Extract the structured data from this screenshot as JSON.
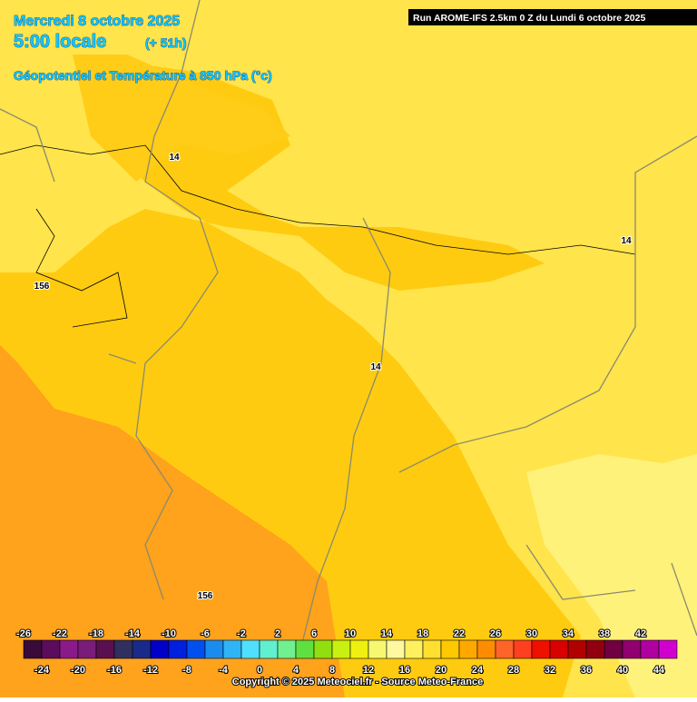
{
  "header": {
    "date": "Mercredi 8 octobre 2025",
    "time": "5:00 locale",
    "lead": "(+ 51h)",
    "field": "Géopotentiel et Température à 850 hPa (°c)",
    "run": "Run AROME-IFS 2.5km 0 Z du Lundi 6 octobre 2025"
  },
  "contour_labels": [
    "14",
    "14",
    "14",
    "156",
    "156"
  ],
  "legend": {
    "ticks": [
      -26,
      -24,
      -22,
      -20,
      -18,
      -16,
      -14,
      -12,
      -10,
      -8,
      -6,
      -4,
      -2,
      0,
      2,
      4,
      6,
      8,
      10,
      12,
      14,
      16,
      18,
      20,
      22,
      24,
      26,
      28,
      30,
      32,
      34,
      36,
      38,
      40,
      42,
      44
    ],
    "colors": [
      "#3a0a3a",
      "#5c0c5c",
      "#8a1a8a",
      "#7a1c7a",
      "#5a1050",
      "#303060",
      "#1a2a8a",
      "#0000c8",
      "#0020e0",
      "#0050f0",
      "#1a8cf0",
      "#30b4f8",
      "#50e0ff",
      "#60f0d0",
      "#70f090",
      "#60e040",
      "#90e010",
      "#c8f010",
      "#f0f010",
      "#f8f870",
      "#fff8a0",
      "#fff060",
      "#ffe030",
      "#ffc800",
      "#ffa800",
      "#ff8c00",
      "#ff6428",
      "#ff4020",
      "#f01000",
      "#d80000",
      "#b00000",
      "#900010",
      "#700040",
      "#900070",
      "#b000a0",
      "#d000d0"
    ]
  },
  "footer": {
    "copyright": "Copyright © 2025 Meteociel.fr - Source Meteo-France"
  }
}
